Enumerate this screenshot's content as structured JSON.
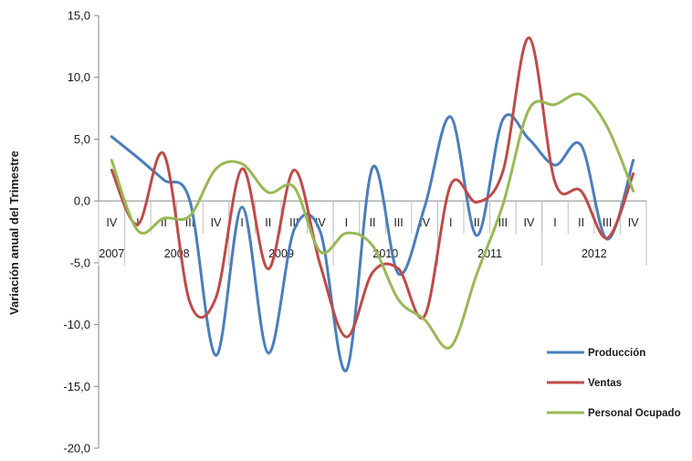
{
  "chart_data": {
    "type": "line",
    "ylabel": "Variación anual del Trimestre",
    "ylim": [
      -20,
      15
    ],
    "yticks": [
      15,
      10,
      5,
      0,
      -5,
      -10,
      -15,
      -20
    ],
    "ytick_labels": [
      "15,0",
      "10,0",
      "5,0",
      "0,0",
      "-5,0",
      "-10,0",
      "-15,0",
      "-20,0"
    ],
    "quarters": [
      "IV",
      "I",
      "II",
      "III",
      "IV",
      "I",
      "II",
      "III",
      "IV",
      "I",
      "II",
      "III",
      "IV",
      "I",
      "II",
      "III",
      "IV",
      "I",
      "II",
      "III",
      "IV"
    ],
    "years": [
      {
        "label": "2007",
        "quarters": 1
      },
      {
        "label": "2008",
        "quarters": 4
      },
      {
        "label": "2009",
        "quarters": 4
      },
      {
        "label": "2010",
        "quarters": 4
      },
      {
        "label": "2011",
        "quarters": 4
      },
      {
        "label": "2012",
        "quarters": 4
      }
    ],
    "series": [
      {
        "name": "Producción",
        "color": "#4a7ebb",
        "values": [
          5.2,
          3.5,
          1.7,
          0.0,
          -12.5,
          -0.5,
          -12.3,
          -2.3,
          -2.5,
          -13.7,
          2.7,
          -5.9,
          -0.5,
          6.8,
          -2.8,
          6.6,
          5.0,
          2.9,
          4.5,
          -3.1,
          3.3
        ]
      },
      {
        "name": "Ventas",
        "color": "#be4b48",
        "values": [
          2.5,
          -1.9,
          3.8,
          -8.2,
          -7.8,
          2.6,
          -5.5,
          2.5,
          -5.2,
          -11.0,
          -5.8,
          -5.5,
          -9.3,
          1.3,
          -0.1,
          2.4,
          13.2,
          1.5,
          0.8,
          -3.0,
          2.2
        ]
      },
      {
        "name": "Personal Ocupado",
        "color": "#98b954",
        "values": [
          3.3,
          -2.4,
          -1.4,
          -1.2,
          2.6,
          3.0,
          0.7,
          1.1,
          -4.1,
          -2.6,
          -3.6,
          -8.0,
          -9.6,
          -11.8,
          -5.9,
          -0.3,
          7.4,
          7.8,
          8.6,
          6.0,
          0.8
        ]
      }
    ],
    "legend_position": "bottom-right",
    "grid": false
  }
}
